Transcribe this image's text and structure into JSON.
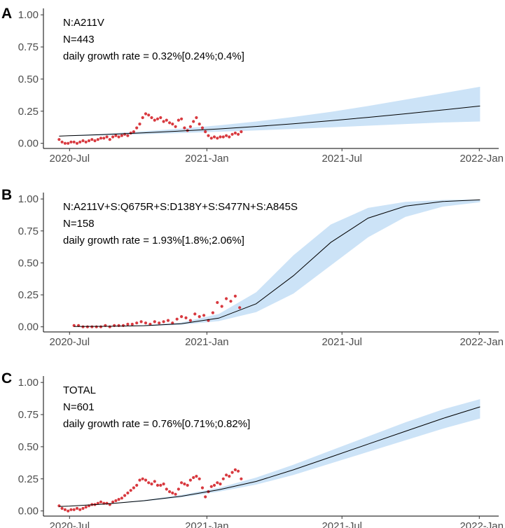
{
  "figure": {
    "panel_count": 3,
    "x_axis_ticks": [
      "2020-Jul",
      "2021-Jan",
      "2021-Jul",
      "2022-Jan"
    ]
  },
  "chart_data": [
    {
      "type": "scatter",
      "panel_label": "A",
      "annotations": [
        "N:A211V",
        "N=443",
        "daily growth rate = 0.32%[0.24%;0.4%]"
      ],
      "xlabel": "",
      "ylabel": "",
      "x_ticks": [
        "2020-Jul",
        "2021-Jan",
        "2021-Jul",
        "2022-Jan"
      ],
      "y_ticks": [
        "0.00",
        "0.25",
        "0.50",
        "0.75",
        "1.00"
      ],
      "xlim": [
        -35,
        575
      ],
      "ylim": [
        -0.04,
        1.05
      ],
      "x_units": "days since 2020-Jul-01",
      "grid": false,
      "colors": {
        "points": "#d4232a",
        "ci_band": "#cce3f7",
        "fit_line": "#000000",
        "axis": "#000000"
      },
      "series": [
        {
          "name": "fit",
          "type": "line",
          "x": [
            -14,
            0,
            50,
            100,
            150,
            200,
            250,
            300,
            350,
            400,
            450,
            500,
            550
          ],
          "y": [
            0.056,
            0.059,
            0.069,
            0.082,
            0.096,
            0.112,
            0.131,
            0.152,
            0.176,
            0.202,
            0.23,
            0.26,
            0.29
          ]
        },
        {
          "name": "95% CI upper",
          "type": "band_upper",
          "x": [
            -14,
            0,
            50,
            100,
            150,
            200,
            250,
            300,
            350,
            400,
            450,
            500,
            550
          ],
          "y": [
            0.058,
            0.062,
            0.076,
            0.094,
            0.115,
            0.14,
            0.17,
            0.205,
            0.245,
            0.29,
            0.34,
            0.39,
            0.44
          ]
        },
        {
          "name": "95% CI lower",
          "type": "band_lower",
          "x": [
            -14,
            0,
            50,
            100,
            150,
            200,
            250,
            300,
            350,
            400,
            450,
            500,
            550
          ],
          "y": [
            0.054,
            0.056,
            0.062,
            0.071,
            0.08,
            0.09,
            0.1,
            0.112,
            0.124,
            0.137,
            0.15,
            0.162,
            0.17
          ]
        },
        {
          "name": "observed",
          "type": "points",
          "x": [
            -14,
            -10,
            -6,
            -2,
            2,
            6,
            10,
            14,
            18,
            22,
            26,
            30,
            34,
            38,
            42,
            46,
            50,
            54,
            58,
            62,
            66,
            70,
            74,
            78,
            82,
            86,
            90,
            94,
            98,
            102,
            106,
            110,
            114,
            118,
            122,
            126,
            130,
            134,
            138,
            142,
            146,
            150,
            154,
            158,
            162,
            166,
            170,
            174,
            178,
            182,
            186,
            190,
            194,
            198,
            202,
            206,
            210,
            214,
            218,
            222,
            226,
            230
          ],
          "y": [
            0.03,
            0.01,
            0.0,
            0.0,
            0.01,
            0.01,
            0.0,
            0.01,
            0.02,
            0.01,
            0.02,
            0.03,
            0.02,
            0.03,
            0.04,
            0.04,
            0.05,
            0.03,
            0.05,
            0.06,
            0.05,
            0.06,
            0.07,
            0.06,
            0.08,
            0.09,
            0.12,
            0.15,
            0.2,
            0.23,
            0.22,
            0.2,
            0.18,
            0.19,
            0.2,
            0.17,
            0.18,
            0.16,
            0.15,
            0.13,
            0.18,
            0.19,
            0.12,
            0.1,
            0.13,
            0.17,
            0.2,
            0.15,
            0.12,
            0.09,
            0.06,
            0.04,
            0.05,
            0.04,
            0.05,
            0.05,
            0.06,
            0.05,
            0.07,
            0.08,
            0.07,
            0.09
          ]
        }
      ]
    },
    {
      "type": "scatter",
      "panel_label": "B",
      "annotations": [
        "N:A211V+S:Q675R+S:D138Y+S:S477N+S:A845S",
        "N=158",
        "daily growth rate = 1.93%[1.8%;2.06%]"
      ],
      "xlabel": "",
      "ylabel": "",
      "x_ticks": [
        "2020-Jul",
        "2021-Jan",
        "2021-Jul",
        "2022-Jan"
      ],
      "y_ticks": [
        "0.00",
        "0.25",
        "0.50",
        "0.75",
        "1.00"
      ],
      "xlim": [
        -35,
        575
      ],
      "ylim": [
        -0.04,
        1.05
      ],
      "x_units": "days since 2020-Jul-01",
      "grid": false,
      "colors": {
        "points": "#d4232a",
        "ci_band": "#cce3f7",
        "fit_line": "#000000",
        "axis": "#000000"
      },
      "series": [
        {
          "name": "fit",
          "type": "line",
          "x": [
            6,
            50,
            100,
            150,
            200,
            250,
            300,
            350,
            400,
            450,
            500,
            550
          ],
          "y": [
            0.002,
            0.004,
            0.009,
            0.024,
            0.068,
            0.18,
            0.4,
            0.66,
            0.85,
            0.944,
            0.98,
            0.993
          ]
        },
        {
          "name": "95% CI upper",
          "type": "band_upper",
          "x": [
            6,
            50,
            100,
            150,
            200,
            250,
            300,
            350,
            400,
            450,
            500,
            550
          ],
          "y": [
            0.003,
            0.006,
            0.013,
            0.034,
            0.1,
            0.27,
            0.56,
            0.8,
            0.93,
            0.977,
            0.992,
            0.997
          ]
        },
        {
          "name": "95% CI lower",
          "type": "band_lower",
          "x": [
            6,
            50,
            100,
            150,
            200,
            250,
            300,
            350,
            400,
            450,
            500,
            550
          ],
          "y": [
            0.001,
            0.002,
            0.006,
            0.016,
            0.045,
            0.115,
            0.26,
            0.48,
            0.7,
            0.86,
            0.94,
            0.975
          ]
        },
        {
          "name": "observed",
          "type": "points",
          "x": [
            6,
            12,
            18,
            24,
            30,
            36,
            42,
            48,
            54,
            60,
            66,
            72,
            78,
            84,
            90,
            96,
            102,
            108,
            114,
            120,
            126,
            132,
            138,
            144,
            150,
            156,
            162,
            168,
            174,
            180,
            186,
            192,
            198,
            204,
            210,
            216,
            222,
            228
          ],
          "y": [
            0.01,
            0.01,
            0.0,
            0.0,
            0.0,
            0.0,
            0.0,
            0.01,
            0.0,
            0.01,
            0.01,
            0.01,
            0.02,
            0.02,
            0.03,
            0.04,
            0.03,
            0.02,
            0.04,
            0.03,
            0.04,
            0.05,
            0.03,
            0.06,
            0.08,
            0.07,
            0.05,
            0.1,
            0.08,
            0.09,
            0.05,
            0.11,
            0.19,
            0.16,
            0.22,
            0.2,
            0.24,
            0.15
          ]
        }
      ]
    },
    {
      "type": "scatter",
      "panel_label": "C",
      "annotations": [
        "TOTAL",
        "N=601",
        "daily growth rate = 0.76%[0.71%;0.82%]"
      ],
      "xlabel": "",
      "ylabel": "",
      "x_ticks": [
        "2020-Jul",
        "2021-Jan",
        "2021-Jul",
        "2022-Jan"
      ],
      "y_ticks": [
        "0.00",
        "0.25",
        "0.50",
        "0.75",
        "1.00"
      ],
      "xlim": [
        -35,
        575
      ],
      "ylim": [
        -0.04,
        1.05
      ],
      "x_units": "days since 2020-Jul-01",
      "grid": false,
      "colors": {
        "points": "#d4232a",
        "ci_band": "#cce3f7",
        "fit_line": "#000000",
        "axis": "#000000"
      },
      "series": [
        {
          "name": "fit",
          "type": "line",
          "x": [
            -14,
            0,
            50,
            100,
            150,
            200,
            250,
            300,
            350,
            400,
            450,
            500,
            550
          ],
          "y": [
            0.035,
            0.038,
            0.055,
            0.08,
            0.115,
            0.165,
            0.23,
            0.32,
            0.42,
            0.52,
            0.62,
            0.72,
            0.81
          ]
        },
        {
          "name": "95% CI upper",
          "type": "band_upper",
          "x": [
            -14,
            0,
            50,
            100,
            150,
            200,
            250,
            300,
            350,
            400,
            450,
            500,
            550
          ],
          "y": [
            0.037,
            0.04,
            0.058,
            0.085,
            0.125,
            0.18,
            0.26,
            0.36,
            0.47,
            0.58,
            0.69,
            0.79,
            0.87
          ]
        },
        {
          "name": "95% CI lower",
          "type": "band_lower",
          "x": [
            -14,
            0,
            50,
            100,
            150,
            200,
            250,
            300,
            350,
            400,
            450,
            500,
            550
          ],
          "y": [
            0.033,
            0.036,
            0.052,
            0.075,
            0.106,
            0.15,
            0.205,
            0.28,
            0.37,
            0.46,
            0.55,
            0.64,
            0.72
          ]
        },
        {
          "name": "observed",
          "type": "points",
          "x": [
            -14,
            -10,
            -6,
            -2,
            2,
            6,
            10,
            14,
            18,
            22,
            26,
            30,
            34,
            38,
            42,
            46,
            50,
            54,
            58,
            62,
            66,
            70,
            74,
            78,
            82,
            86,
            90,
            94,
            98,
            102,
            106,
            110,
            114,
            118,
            122,
            126,
            130,
            134,
            138,
            142,
            146,
            150,
            154,
            158,
            162,
            166,
            170,
            174,
            178,
            182,
            186,
            190,
            194,
            198,
            202,
            206,
            210,
            214,
            218,
            222,
            226,
            230
          ],
          "y": [
            0.04,
            0.02,
            0.01,
            0.0,
            0.01,
            0.01,
            0.02,
            0.01,
            0.02,
            0.03,
            0.04,
            0.05,
            0.05,
            0.06,
            0.07,
            0.06,
            0.06,
            0.05,
            0.07,
            0.08,
            0.09,
            0.1,
            0.12,
            0.14,
            0.16,
            0.18,
            0.2,
            0.24,
            0.25,
            0.24,
            0.22,
            0.21,
            0.23,
            0.2,
            0.2,
            0.21,
            0.17,
            0.15,
            0.14,
            0.13,
            0.17,
            0.22,
            0.21,
            0.2,
            0.24,
            0.26,
            0.27,
            0.25,
            0.18,
            0.11,
            0.15,
            0.19,
            0.2,
            0.22,
            0.21,
            0.25,
            0.28,
            0.27,
            0.3,
            0.32,
            0.31,
            0.25
          ]
        }
      ]
    }
  ]
}
